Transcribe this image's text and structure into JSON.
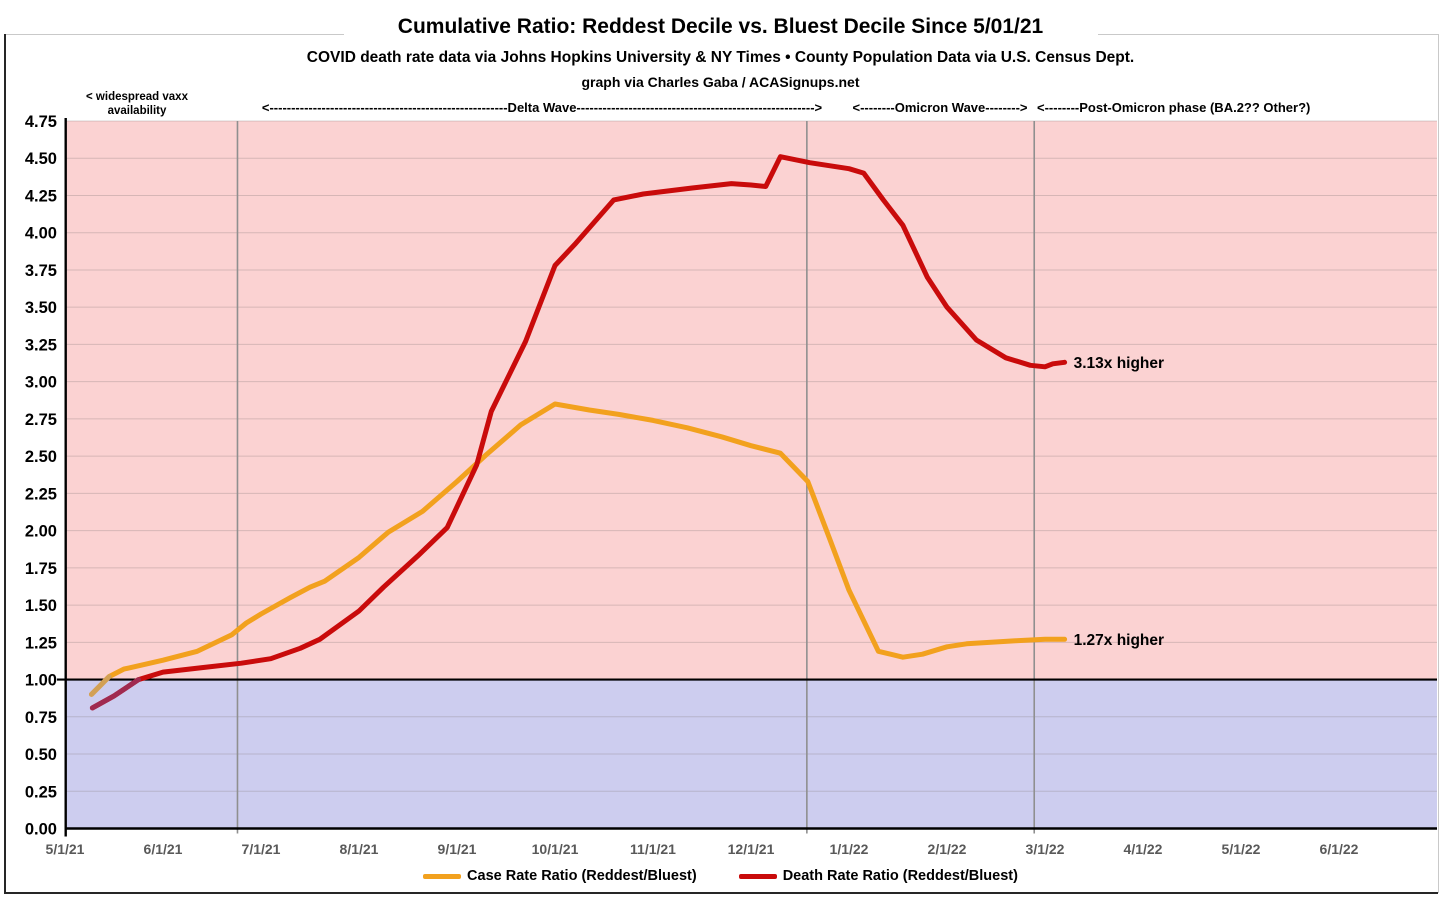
{
  "header": {
    "title": "Cumulative Ratio: Reddest Decile vs. Bluest Decile Since 5/01/21",
    "subtitle": "COVID death rate data via Johns Hopkins University & NY Times • County Population Data via U.S. Census Dept.",
    "credit": "graph via Charles Gaba / ACASignups.net"
  },
  "annotations": {
    "vaxx_note": "< widespread vaxx availability",
    "delta_wave": "<-------------------------------------------------------Delta Wave------------------------------------------------------->",
    "omicron_wave": "<--------Omicron Wave-------->",
    "post_omicron": "<--------Post-Omicron phase (BA.2?? Other?)"
  },
  "chart_data": {
    "type": "line",
    "title": "Cumulative Ratio: Reddest Decile vs. Bluest Decile Since 5/01/21",
    "x_axis": {
      "unit": "months since 5/1/21",
      "range": [
        0,
        14
      ],
      "tick_labels": [
        "5/1/21",
        "6/1/21",
        "7/1/21",
        "8/1/21",
        "9/1/21",
        "10/1/21",
        "11/1/21",
        "12/1/21",
        "1/1/22",
        "2/1/22",
        "3/1/22",
        "4/1/22",
        "5/1/22",
        "6/1/22"
      ]
    },
    "y_axis": {
      "min": 0,
      "max": 4.75,
      "step": 0.25,
      "tick_labels": [
        "0.00",
        "0.25",
        "0.50",
        "0.75",
        "1.00",
        "1.25",
        "1.50",
        "1.75",
        "2.00",
        "2.25",
        "2.50",
        "2.75",
        "3.00",
        "3.25",
        "3.50",
        "3.75",
        "4.00",
        "4.25",
        "4.50",
        "4.75"
      ]
    },
    "reference_line_y": 1.0,
    "phase_boundaries_x": [
      1.76,
      7.57,
      9.89
    ],
    "regions": {
      "above_1_color": "#FBD2D2",
      "below_1_color": "#CDCDEF"
    },
    "grid": {
      "color": "rgba(128,118,120,0.30)",
      "phase_line_color": "#8f8f8f"
    },
    "legend_position": "bottom",
    "series": [
      {
        "name": "Case Rate Ratio (Reddest/Bluest)",
        "color": "#F2A11E",
        "start_color": "#D2A055",
        "start_until": 0.45,
        "end_label": "1.27x higher",
        "points": [
          [
            0.27,
            0.9
          ],
          [
            0.45,
            1.02
          ],
          [
            0.6,
            1.07
          ],
          [
            0.8,
            1.1
          ],
          [
            1.0,
            1.13
          ],
          [
            1.35,
            1.19
          ],
          [
            1.7,
            1.3
          ],
          [
            1.85,
            1.38
          ],
          [
            2.0,
            1.44
          ],
          [
            2.3,
            1.55
          ],
          [
            2.5,
            1.62
          ],
          [
            2.65,
            1.66
          ],
          [
            3.0,
            1.82
          ],
          [
            3.3,
            1.99
          ],
          [
            3.65,
            2.13
          ],
          [
            4.0,
            2.33
          ],
          [
            4.3,
            2.51
          ],
          [
            4.65,
            2.71
          ],
          [
            5.0,
            2.85
          ],
          [
            5.35,
            2.81
          ],
          [
            5.65,
            2.78
          ],
          [
            6.0,
            2.74
          ],
          [
            6.35,
            2.69
          ],
          [
            6.7,
            2.63
          ],
          [
            7.0,
            2.57
          ],
          [
            7.3,
            2.52
          ],
          [
            7.58,
            2.33
          ],
          [
            7.8,
            1.95
          ],
          [
            8.0,
            1.6
          ],
          [
            8.3,
            1.19
          ],
          [
            8.55,
            1.15
          ],
          [
            8.75,
            1.17
          ],
          [
            9.0,
            1.22
          ],
          [
            9.2,
            1.24
          ],
          [
            9.45,
            1.25
          ],
          [
            9.7,
            1.26
          ],
          [
            10.0,
            1.27
          ],
          [
            10.2,
            1.27
          ]
        ]
      },
      {
        "name": "Death Rate Ratio (Reddest/Bluest)",
        "color": "#C90B0B",
        "start_color": "#A02A50",
        "start_until": 0.75,
        "end_label": "3.13x higher",
        "points": [
          [
            0.28,
            0.81
          ],
          [
            0.5,
            0.89
          ],
          [
            0.75,
            1.0
          ],
          [
            1.0,
            1.05
          ],
          [
            1.4,
            1.08
          ],
          [
            1.8,
            1.11
          ],
          [
            2.1,
            1.14
          ],
          [
            2.4,
            1.21
          ],
          [
            2.6,
            1.27
          ],
          [
            3.0,
            1.46
          ],
          [
            3.25,
            1.62
          ],
          [
            3.6,
            1.83
          ],
          [
            3.9,
            2.02
          ],
          [
            4.2,
            2.44
          ],
          [
            4.35,
            2.8
          ],
          [
            4.7,
            3.27
          ],
          [
            5.0,
            3.78
          ],
          [
            5.2,
            3.92
          ],
          [
            5.6,
            4.22
          ],
          [
            5.9,
            4.26
          ],
          [
            6.4,
            4.3
          ],
          [
            6.8,
            4.33
          ],
          [
            7.0,
            4.32
          ],
          [
            7.15,
            4.31
          ],
          [
            7.3,
            4.51
          ],
          [
            7.6,
            4.47
          ],
          [
            8.0,
            4.43
          ],
          [
            8.15,
            4.4
          ],
          [
            8.35,
            4.22
          ],
          [
            8.55,
            4.05
          ],
          [
            8.8,
            3.7
          ],
          [
            9.0,
            3.5
          ],
          [
            9.3,
            3.28
          ],
          [
            9.6,
            3.16
          ],
          [
            9.85,
            3.11
          ],
          [
            10.0,
            3.1
          ],
          [
            10.08,
            3.12
          ],
          [
            10.2,
            3.13
          ]
        ]
      }
    ]
  }
}
